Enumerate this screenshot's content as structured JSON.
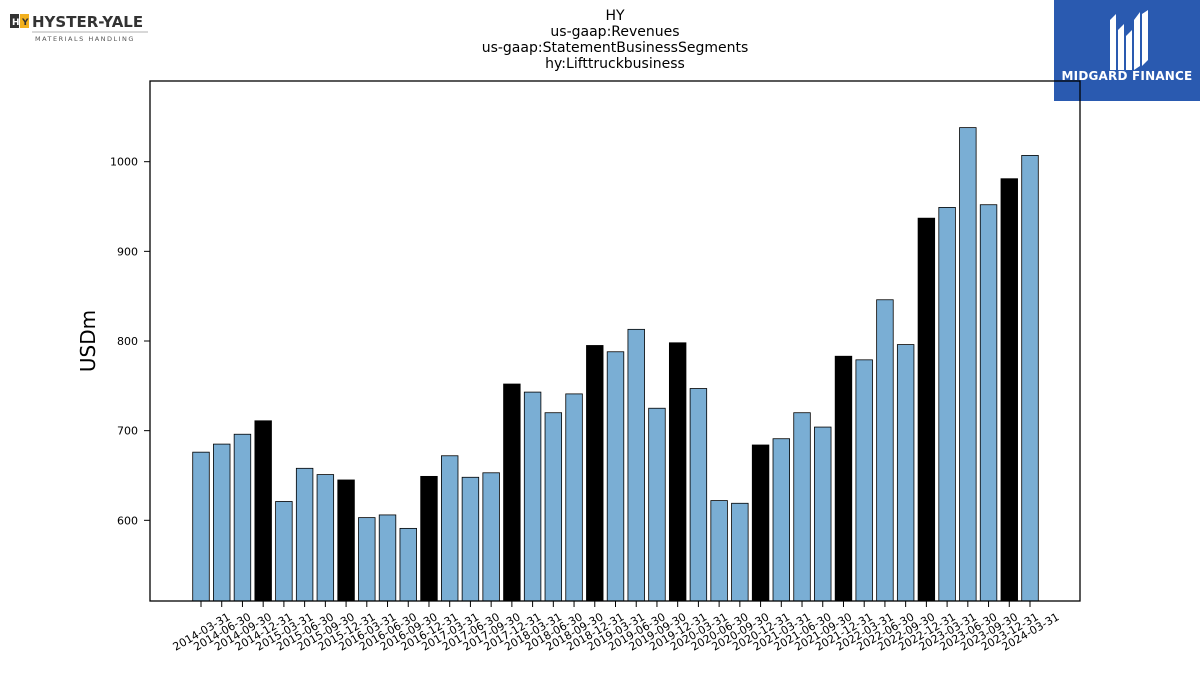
{
  "header": {
    "left_logo": {
      "name": "HYSTER-YALE",
      "tagline": "MATERIALS HANDLING"
    },
    "right_logo": {
      "name": "MIDGARD FINANCE"
    }
  },
  "chart_data": {
    "type": "bar",
    "title_lines": [
      "HY",
      "us-gaap:Revenues",
      "us-gaap:StatementBusinessSegments",
      "hy:Lifttruckbusiness"
    ],
    "xlabel": "",
    "ylabel": "USDm",
    "ylim": [
      510,
      1090
    ],
    "yticks": [
      600,
      700,
      800,
      900,
      1000
    ],
    "grid": false,
    "colors": {
      "quarter": "#7aaed4",
      "year_end": "#000000",
      "edge": "#000000"
    },
    "categories": [
      "2014-03-31",
      "2014-06-30",
      "2014-09-30",
      "2014-12-31",
      "2015-03-31",
      "2015-06-30",
      "2015-09-30",
      "2015-12-31",
      "2016-03-31",
      "2016-06-30",
      "2016-09-30",
      "2016-12-31",
      "2017-03-31",
      "2017-06-30",
      "2017-09-30",
      "2017-12-31",
      "2018-03-31",
      "2018-06-30",
      "2018-09-30",
      "2018-12-31",
      "2019-03-31",
      "2019-06-30",
      "2019-09-30",
      "2019-12-31",
      "2020-03-31",
      "2020-06-30",
      "2020-09-30",
      "2020-12-31",
      "2021-03-31",
      "2021-06-30",
      "2021-09-30",
      "2021-12-31",
      "2022-03-31",
      "2022-06-30",
      "2022-09-30",
      "2022-12-31",
      "2023-03-31",
      "2023-06-30",
      "2023-09-30",
      "2023-12-31",
      "2024-03-31"
    ],
    "values": [
      676,
      685,
      696,
      711,
      621,
      658,
      651,
      645,
      603,
      606,
      591,
      649,
      672,
      648,
      653,
      752,
      743,
      720,
      741,
      795,
      788,
      813,
      725,
      798,
      747,
      622,
      619,
      684,
      691,
      720,
      704,
      783,
      779,
      846,
      796,
      937,
      949,
      1038,
      952,
      981,
      1007
    ],
    "year_end": [
      false,
      false,
      false,
      true,
      false,
      false,
      false,
      true,
      false,
      false,
      false,
      true,
      false,
      false,
      false,
      true,
      false,
      false,
      false,
      true,
      false,
      false,
      false,
      true,
      false,
      false,
      false,
      true,
      false,
      false,
      false,
      true,
      false,
      false,
      false,
      true,
      false,
      false,
      false,
      true,
      false
    ]
  }
}
